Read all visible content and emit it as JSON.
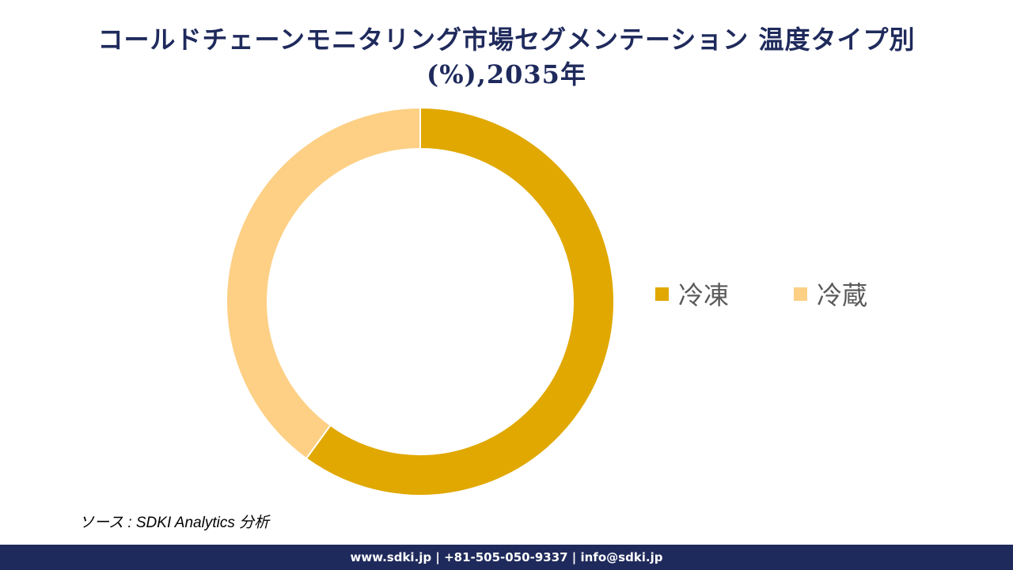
{
  "title": {
    "line1": "コールドチェーンモニタリング市場セグメンテーション 温度タイプ別",
    "line2": "(%),2035年"
  },
  "chart_data": {
    "type": "donut",
    "title": "コールドチェーンモニタリング市場セグメンテーション 温度タイプ別 (%),2035年",
    "categories": [
      "冷凍",
      "冷蔵"
    ],
    "values": [
      60,
      40
    ],
    "colors": [
      "#e0a800",
      "#fdd085"
    ],
    "legend_position": "right",
    "data_labels": false
  },
  "source": "ソース : SDKI Analytics 分析",
  "footer": "www.sdki.jp | +81-505-050-9337 | info@sdki.jp"
}
